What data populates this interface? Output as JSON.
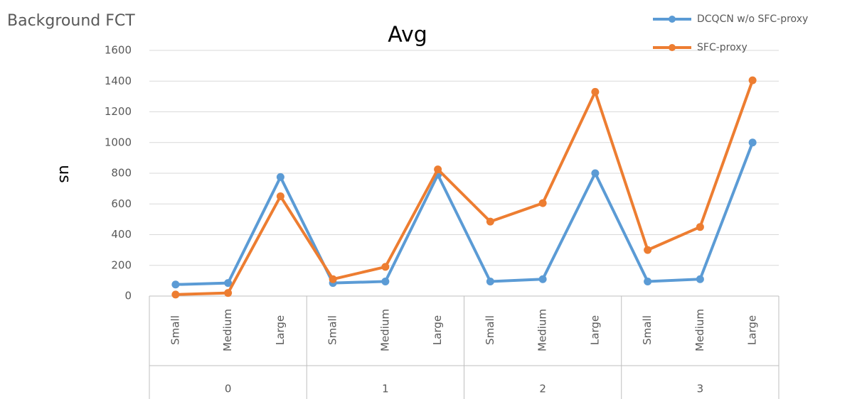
{
  "chart_data": {
    "type": "line",
    "header": "Background FCT",
    "title": "Avg",
    "y_label": "us",
    "categories": [
      "Small",
      "Medium",
      "Large",
      "Small",
      "Medium",
      "Large",
      "Small",
      "Medium",
      "Large",
      "Small",
      "Medium",
      "Large"
    ],
    "groups": [
      "0",
      "1",
      "2",
      "3"
    ],
    "series": [
      {
        "name": "DCQCN w/o SFC-proxy",
        "color": "#5b9bd5",
        "values": [
          75,
          85,
          775,
          85,
          95,
          790,
          95,
          110,
          800,
          95,
          110,
          1000
        ]
      },
      {
        "name": "SFC-proxy",
        "color": "#ed7d31",
        "values": [
          10,
          20,
          650,
          110,
          190,
          825,
          485,
          605,
          1330,
          300,
          450,
          1405
        ]
      }
    ],
    "ylim": [
      0,
      1600
    ],
    "yticks": [
      0,
      200,
      400,
      600,
      800,
      1000,
      1200,
      1400,
      1600
    ],
    "grid": true,
    "legend": "top-right"
  }
}
